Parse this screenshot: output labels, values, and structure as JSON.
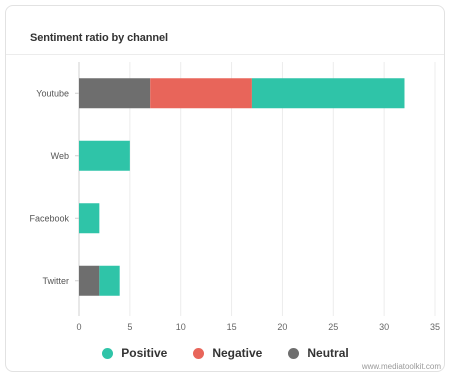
{
  "chart_data": {
    "type": "bar",
    "orientation": "horizontal",
    "stacked": true,
    "title": "Sentiment ratio by channel",
    "categories": [
      "Youtube",
      "Web",
      "Facebook",
      "Twitter"
    ],
    "series": [
      {
        "name": "Neutral",
        "color": "#6e6e6e",
        "values": [
          7,
          0,
          0,
          2
        ]
      },
      {
        "name": "Negative",
        "color": "#e8655a",
        "values": [
          10,
          0,
          0,
          0
        ]
      },
      {
        "name": "Positive",
        "color": "#2fc4a8",
        "values": [
          15,
          5,
          2,
          2
        ]
      }
    ],
    "xlim": [
      0,
      35
    ],
    "xticks": [
      "0",
      "5",
      "10",
      "15",
      "20",
      "25",
      "30",
      "35"
    ],
    "grid": true,
    "legend_position": "bottom",
    "legend_order": [
      "Positive",
      "Negative",
      "Neutral"
    ]
  },
  "watermark": "www.mediatoolkit.com"
}
